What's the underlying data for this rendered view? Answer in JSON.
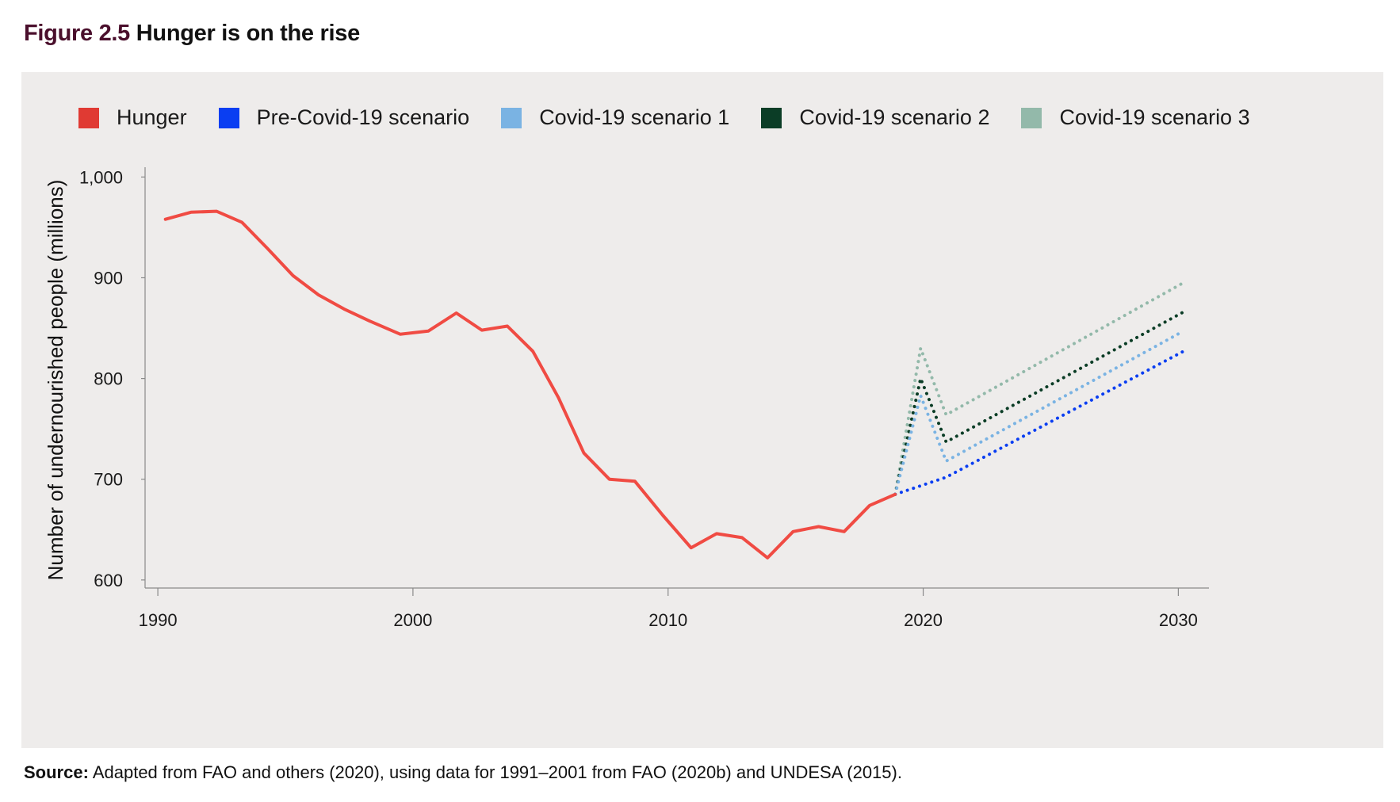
{
  "figure": {
    "number": "Figure 2.5",
    "title": "Hunger is on the rise"
  },
  "source": {
    "label": "Source:",
    "text": "Adapted from FAO and others (2020), using data for 1991–2001 from FAO (2020b) and UNDESA (2015)."
  },
  "legend": [
    {
      "label": "Hunger",
      "color": "#e03a33"
    },
    {
      "label": "Pre-Covid-19 scenario",
      "color": "#0a3ef2"
    },
    {
      "label": "Covid-19 scenario 1",
      "color": "#7ab3e3"
    },
    {
      "label": "Covid-19 scenario 2",
      "color": "#0b3d26"
    },
    {
      "label": "Covid-19 scenario 3",
      "color": "#93b9aa"
    }
  ],
  "chart_data": {
    "type": "line",
    "title": "",
    "xlabel": "",
    "ylabel": "Number of undernourished people (millions)",
    "xlim": [
      1989.5,
      2031.2
    ],
    "ylim": [
      592,
      1005
    ],
    "xticks": [
      1990,
      2000,
      2010,
      2020,
      2030
    ],
    "yticks": [
      600,
      700,
      800,
      900,
      1000
    ],
    "ytick_labels": [
      "600",
      "700",
      "800",
      "900",
      "1,000"
    ],
    "legend_position": "top",
    "grid": false,
    "series": [
      {
        "name": "Hunger",
        "style": "solid",
        "color": "#f04b43",
        "x": [
          1990.3,
          1991.3,
          1992.3,
          1993.3,
          1994.3,
          1995.3,
          1996.3,
          1997.3,
          1998.3,
          1999.5,
          2000.6,
          2001.7,
          2002.7,
          2003.7,
          2004.7,
          2005.7,
          2006.7,
          2007.7,
          2008.7,
          2009.8,
          2010.9,
          2011.9,
          2012.9,
          2013.9,
          2014.9,
          2015.9,
          2016.9,
          2017.9,
          2018.9
        ],
        "y": [
          958,
          965,
          966,
          955,
          929,
          902,
          883,
          869,
          857,
          844,
          847,
          865,
          848,
          852,
          827,
          781,
          726,
          700,
          698,
          664,
          632,
          646,
          642,
          622,
          648,
          653,
          648,
          674,
          685
        ]
      },
      {
        "name": "Pre-Covid-19 scenario",
        "style": "dotted",
        "color": "#0a3ef2",
        "x": [
          2018.9,
          2020.9,
          2030.2
        ],
        "y": [
          685,
          702,
          827
        ]
      },
      {
        "name": "Covid-19 scenario 1",
        "style": "dotted",
        "color": "#7ab3e3",
        "x": [
          2018.9,
          2019.9,
          2020.9,
          2030.2
        ],
        "y": [
          685,
          783,
          718,
          847
        ]
      },
      {
        "name": "Covid-19 scenario 2",
        "style": "dotted",
        "color": "#0b3d26",
        "x": [
          2018.9,
          2019.9,
          2020.9,
          2030.2
        ],
        "y": [
          685,
          800,
          737,
          866
        ]
      },
      {
        "name": "Covid-19 scenario 3",
        "style": "dotted",
        "color": "#93b9aa",
        "x": [
          2018.9,
          2019.9,
          2020.9,
          2030.2
        ],
        "y": [
          685,
          830,
          764,
          895
        ]
      }
    ]
  }
}
